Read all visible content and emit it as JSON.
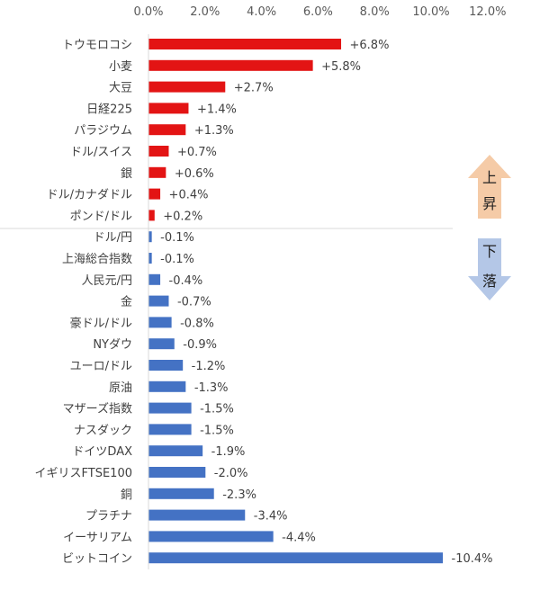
{
  "chart_data": {
    "type": "bar",
    "orientation": "horizontal",
    "title": "",
    "xlabel": "",
    "ylabel": "",
    "xlim": [
      0,
      12
    ],
    "x_ticks": [
      "0.0%",
      "2.0%",
      "4.0%",
      "6.0%",
      "8.0%",
      "10.0%",
      "12.0%"
    ],
    "x_axis_position": "top",
    "grid": false,
    "note": "bar length shows absolute change; red = rise, blue = fall",
    "categories": [
      "トウモロコシ",
      "小麦",
      "大豆",
      "日経225",
      "パラジウム",
      "ドル/スイス",
      "銀",
      "ドル/カナダドル",
      "ポンド/ドル",
      "ドル/円",
      "上海総合指数",
      "人民元/円",
      "金",
      "豪ドル/ドル",
      "NYダウ",
      "ユーロ/ドル",
      "原油",
      "マザーズ指数",
      "ナスダック",
      "ドイツDAX",
      "イギリスFTSE100",
      "銅",
      "プラチナ",
      "イーサリアム",
      "ビットコイン"
    ],
    "values": [
      6.8,
      5.8,
      2.7,
      1.4,
      1.3,
      0.7,
      0.6,
      0.4,
      0.2,
      -0.1,
      -0.1,
      -0.4,
      -0.7,
      -0.8,
      -0.9,
      -1.2,
      -1.3,
      -1.5,
      -1.5,
      -1.9,
      -2.0,
      -2.3,
      -3.4,
      -4.4,
      -10.4
    ],
    "data_labels": [
      "+6.8%",
      "+5.8%",
      "+2.7%",
      "+1.4%",
      "+1.3%",
      "+0.7%",
      "+0.6%",
      "+0.4%",
      "+0.2%",
      "-0.1%",
      "-0.1%",
      "-0.4%",
      "-0.7%",
      "-0.8%",
      "-0.9%",
      "-1.2%",
      "-1.3%",
      "-1.5%",
      "-1.5%",
      "-1.9%",
      "-2.0%",
      "-2.3%",
      "-3.4%",
      "-4.4%",
      "-10.4%"
    ],
    "colors": {
      "up": "#e31414",
      "down": "#4472c4",
      "up_arrow": "#f5cba7",
      "down_arrow": "#b4c7e7"
    },
    "annotations": {
      "up_arrow_text": [
        "上",
        "昇"
      ],
      "down_arrow_text": [
        "下",
        "落"
      ]
    }
  }
}
